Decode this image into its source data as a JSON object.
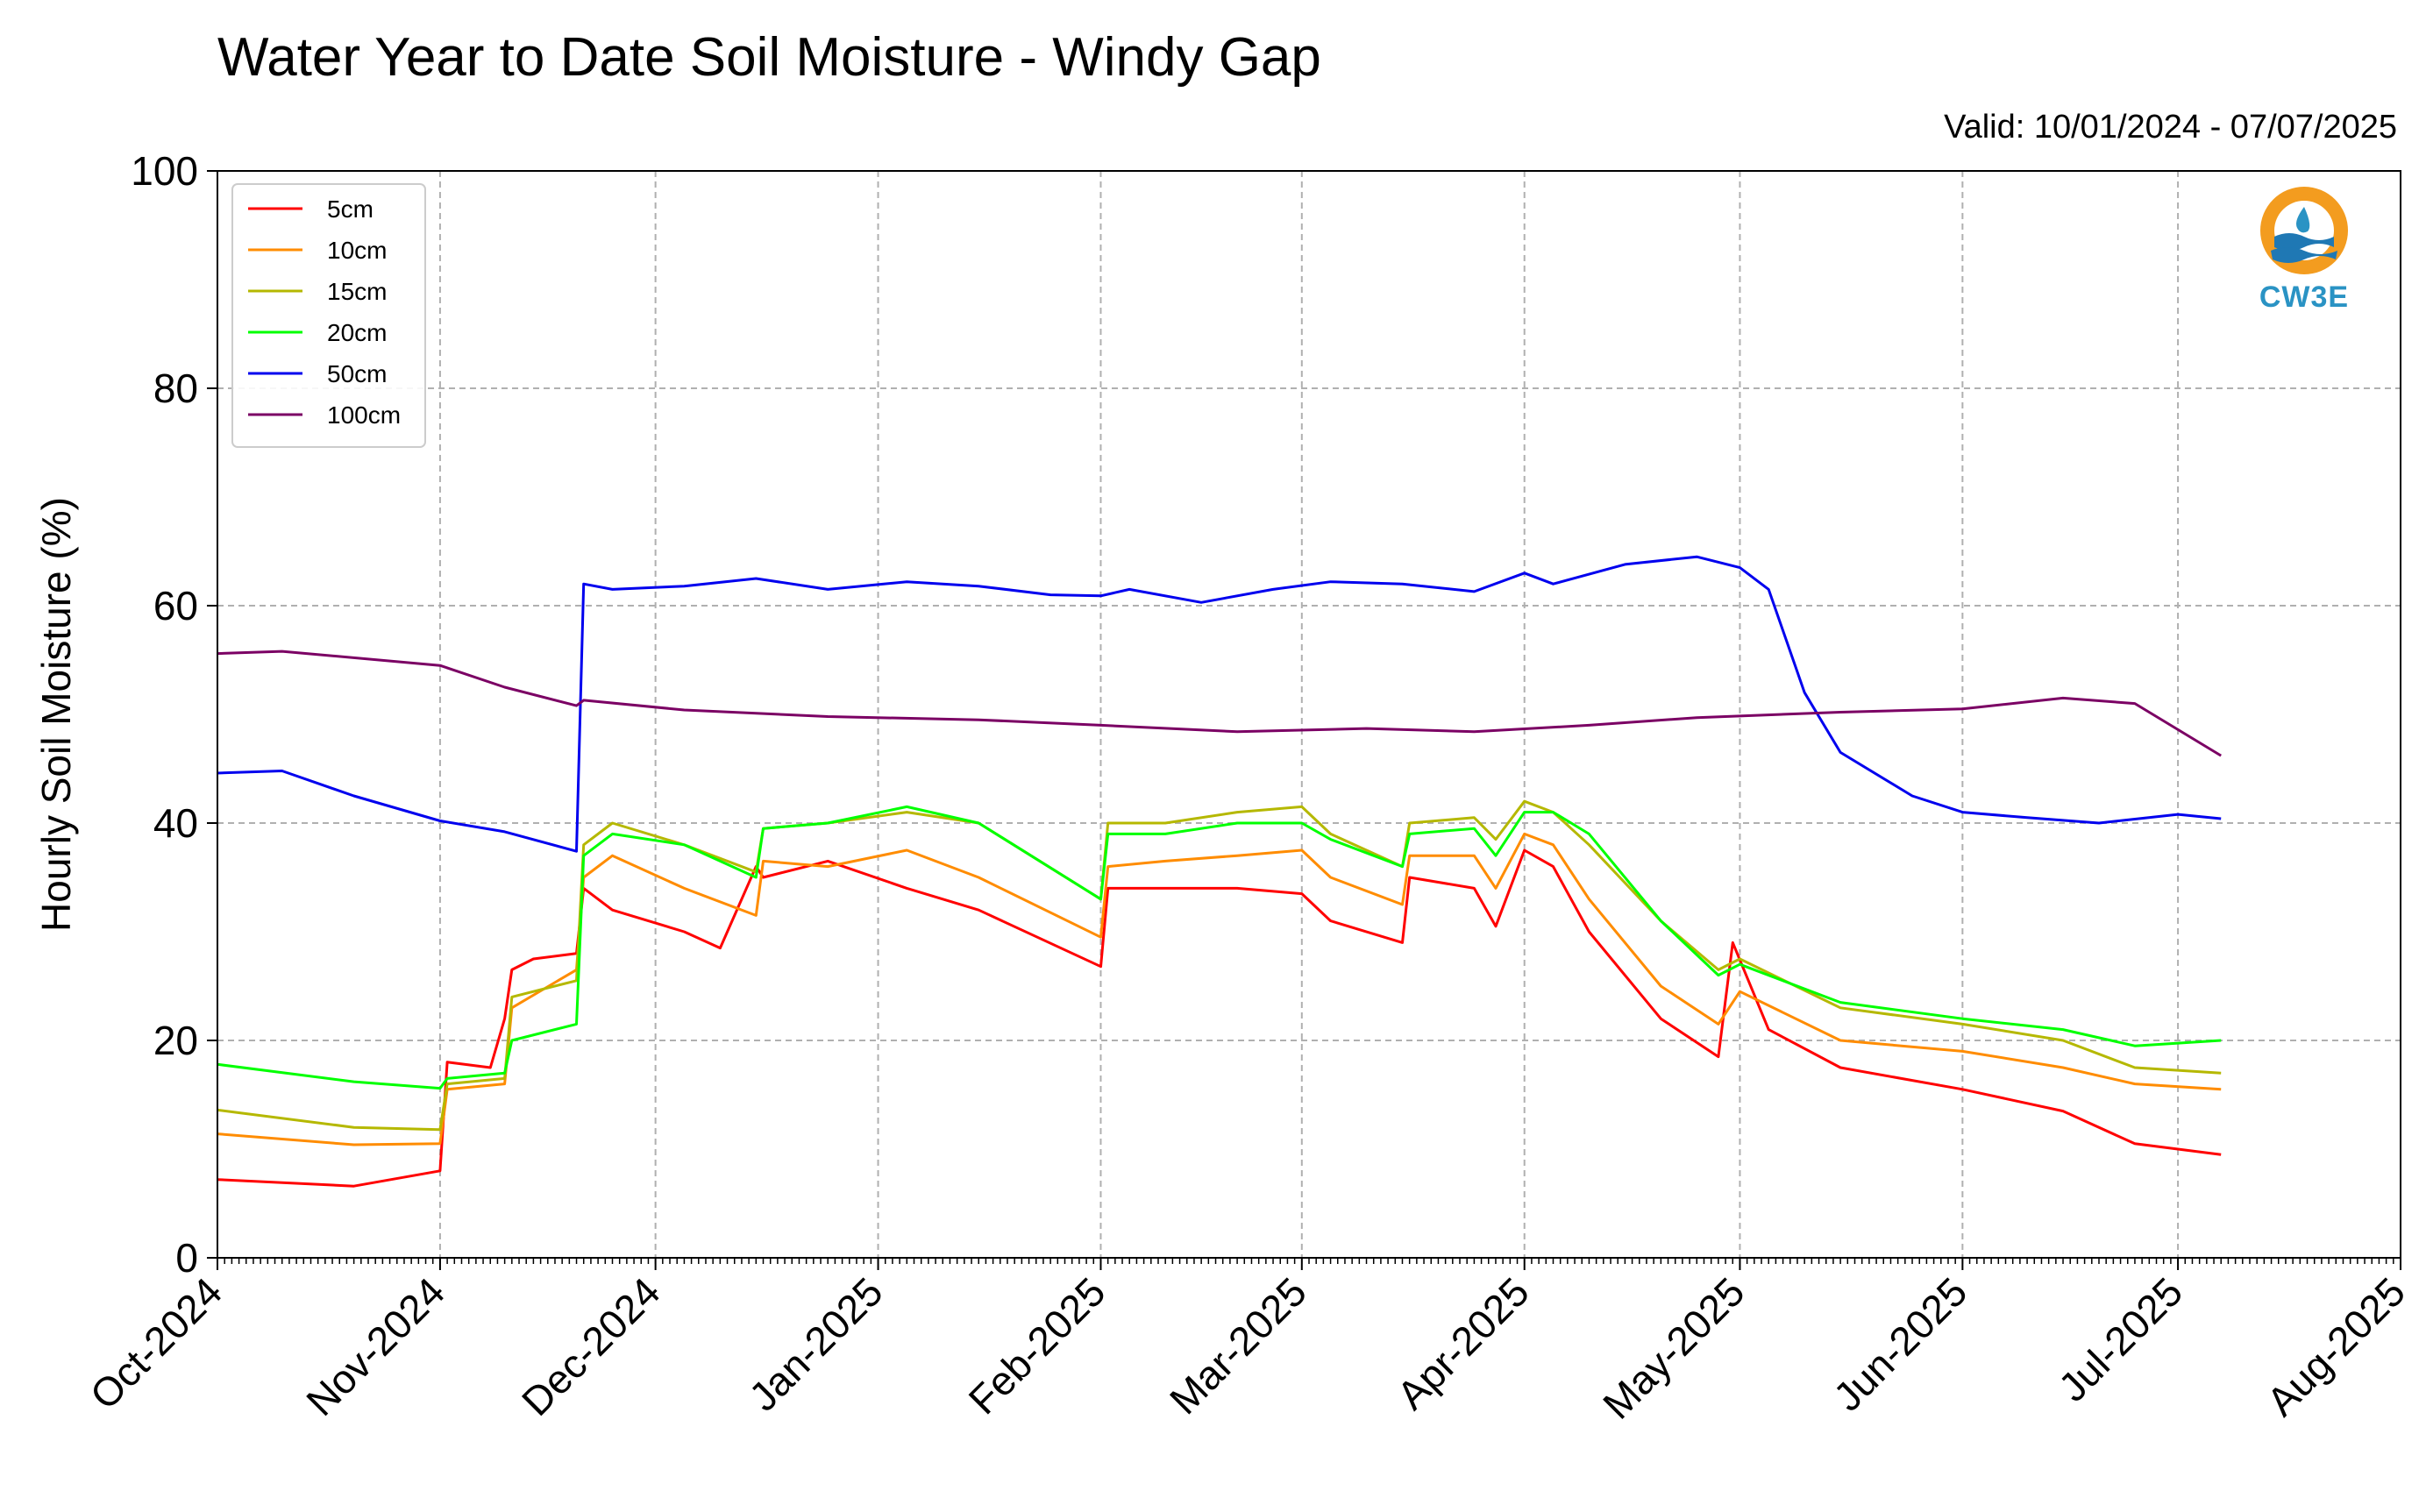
{
  "title": "Water Year to Date Soil Moisture - Windy Gap",
  "valid_text": "Valid: 10/01/2024 - 07/07/2025",
  "logo": {
    "text": "CW3E",
    "icon": "cw3e-logo-icon",
    "colors": {
      "ring": "#f39c1f",
      "water": "#1f78b4",
      "text": "#2a93c4"
    }
  },
  "chart_data": {
    "type": "line",
    "title": "Water Year to Date Soil Moisture - Windy Gap",
    "ylabel": "Hourly Soil Moisture (%)",
    "xlabel": "",
    "ylim": [
      0,
      100
    ],
    "yticks": [
      0,
      20,
      40,
      60,
      80,
      100
    ],
    "xlim": [
      "2024-10-01",
      "2025-08-01"
    ],
    "xticks": [
      {
        "date": "2024-10-01",
        "label": "Oct-2024"
      },
      {
        "date": "2024-11-01",
        "label": "Nov-2024"
      },
      {
        "date": "2024-12-01",
        "label": "Dec-2024"
      },
      {
        "date": "2025-01-01",
        "label": "Jan-2025"
      },
      {
        "date": "2025-02-01",
        "label": "Feb-2025"
      },
      {
        "date": "2025-03-01",
        "label": "Mar-2025"
      },
      {
        "date": "2025-04-01",
        "label": "Apr-2025"
      },
      {
        "date": "2025-05-01",
        "label": "May-2025"
      },
      {
        "date": "2025-06-01",
        "label": "Jun-2025"
      },
      {
        "date": "2025-07-01",
        "label": "Jul-2025"
      },
      {
        "date": "2025-08-01",
        "label": "Aug-2025"
      }
    ],
    "grid": true,
    "legend_position": "top-left",
    "series": [
      {
        "name": "5cm",
        "color": "#ff0000",
        "x": [
          "2024-10-01",
          "2024-10-20",
          "2024-11-01",
          "2024-11-02",
          "2024-11-08",
          "2024-11-10",
          "2024-11-11",
          "2024-11-14",
          "2024-11-20",
          "2024-11-21",
          "2024-11-25",
          "2024-12-05",
          "2024-12-10",
          "2024-12-15",
          "2024-12-16",
          "2024-12-25",
          "2025-01-05",
          "2025-01-15",
          "2025-02-01",
          "2025-02-02",
          "2025-02-10",
          "2025-02-20",
          "2025-03-01",
          "2025-03-05",
          "2025-03-15",
          "2025-03-16",
          "2025-03-25",
          "2025-03-28",
          "2025-04-01",
          "2025-04-05",
          "2025-04-10",
          "2025-04-20",
          "2025-04-28",
          "2025-04-30",
          "2025-05-05",
          "2025-05-15",
          "2025-06-01",
          "2025-06-15",
          "2025-06-25",
          "2025-07-07"
        ],
        "y": [
          7.2,
          6.6,
          8.0,
          18.0,
          17.5,
          22.0,
          26.5,
          27.5,
          28.0,
          34.0,
          32.0,
          30.0,
          28.5,
          36.0,
          35.0,
          36.5,
          34.0,
          32.0,
          26.8,
          34.0,
          34.0,
          34.0,
          33.5,
          31.0,
          29.0,
          35.0,
          34.0,
          30.5,
          37.5,
          36.0,
          30.0,
          22.0,
          18.5,
          29.0,
          21.0,
          17.5,
          15.5,
          13.5,
          10.5,
          9.5
        ]
      },
      {
        "name": "10cm",
        "color": "#ff8c00",
        "x": [
          "2024-10-01",
          "2024-10-20",
          "2024-11-01",
          "2024-11-02",
          "2024-11-10",
          "2024-11-11",
          "2024-11-20",
          "2024-11-21",
          "2024-11-25",
          "2024-12-05",
          "2024-12-15",
          "2024-12-16",
          "2024-12-25",
          "2025-01-05",
          "2025-01-15",
          "2025-02-01",
          "2025-02-02",
          "2025-02-10",
          "2025-02-20",
          "2025-03-01",
          "2025-03-05",
          "2025-03-15",
          "2025-03-16",
          "2025-03-25",
          "2025-03-28",
          "2025-04-01",
          "2025-04-05",
          "2025-04-10",
          "2025-04-20",
          "2025-04-28",
          "2025-05-01",
          "2025-05-15",
          "2025-06-01",
          "2025-06-15",
          "2025-06-25",
          "2025-07-07"
        ],
        "y": [
          11.4,
          10.4,
          10.5,
          15.5,
          16.0,
          23.0,
          26.5,
          35.0,
          37.0,
          34.0,
          31.5,
          36.5,
          36.0,
          37.5,
          35.0,
          29.5,
          36.0,
          36.5,
          37.0,
          37.5,
          35.0,
          32.5,
          37.0,
          37.0,
          34.0,
          39.0,
          38.0,
          33.0,
          25.0,
          21.5,
          24.5,
          20.0,
          19.0,
          17.5,
          16.0,
          15.5
        ]
      },
      {
        "name": "15cm",
        "color": "#b5b800",
        "x": [
          "2024-10-01",
          "2024-10-20",
          "2024-11-01",
          "2024-11-02",
          "2024-11-10",
          "2024-11-11",
          "2024-11-20",
          "2024-11-21",
          "2024-11-25",
          "2024-12-05",
          "2024-12-15",
          "2024-12-16",
          "2024-12-25",
          "2025-01-05",
          "2025-01-15",
          "2025-02-01",
          "2025-02-02",
          "2025-02-10",
          "2025-02-20",
          "2025-03-01",
          "2025-03-05",
          "2025-03-15",
          "2025-03-16",
          "2025-03-25",
          "2025-03-28",
          "2025-04-01",
          "2025-04-05",
          "2025-04-10",
          "2025-04-20",
          "2025-04-28",
          "2025-05-01",
          "2025-05-15",
          "2025-06-01",
          "2025-06-15",
          "2025-06-25",
          "2025-07-07"
        ],
        "y": [
          13.6,
          12.0,
          11.8,
          16.0,
          16.5,
          24.0,
          25.5,
          38.0,
          40.0,
          38.0,
          35.5,
          39.5,
          40.0,
          41.0,
          40.0,
          33.0,
          40.0,
          40.0,
          41.0,
          41.5,
          39.0,
          36.0,
          40.0,
          40.5,
          38.5,
          42.0,
          41.0,
          38.0,
          31.0,
          26.5,
          27.5,
          23.0,
          21.5,
          20.0,
          17.5,
          17.0
        ]
      },
      {
        "name": "20cm",
        "color": "#00ff00",
        "x": [
          "2024-10-01",
          "2024-10-20",
          "2024-11-01",
          "2024-11-02",
          "2024-11-10",
          "2024-11-11",
          "2024-11-20",
          "2024-11-21",
          "2024-11-25",
          "2024-12-05",
          "2024-12-15",
          "2024-12-16",
          "2024-12-25",
          "2025-01-05",
          "2025-01-15",
          "2025-02-01",
          "2025-02-02",
          "2025-02-10",
          "2025-02-20",
          "2025-03-01",
          "2025-03-05",
          "2025-03-15",
          "2025-03-16",
          "2025-03-25",
          "2025-03-28",
          "2025-04-01",
          "2025-04-05",
          "2025-04-10",
          "2025-04-20",
          "2025-04-28",
          "2025-05-01",
          "2025-05-15",
          "2025-06-01",
          "2025-06-15",
          "2025-06-25",
          "2025-07-07"
        ],
        "y": [
          17.8,
          16.2,
          15.6,
          16.5,
          17.0,
          20.0,
          21.5,
          37.0,
          39.0,
          38.0,
          35.0,
          39.5,
          40.0,
          41.5,
          40.0,
          33.0,
          39.0,
          39.0,
          40.0,
          40.0,
          38.5,
          36.0,
          39.0,
          39.5,
          37.0,
          41.0,
          41.0,
          39.0,
          31.0,
          26.0,
          27.0,
          23.5,
          22.0,
          21.0,
          19.5,
          20.0
        ]
      },
      {
        "name": "50cm",
        "color": "#0000ee",
        "x": [
          "2024-10-01",
          "2024-10-10",
          "2024-10-20",
          "2024-11-01",
          "2024-11-10",
          "2024-11-20",
          "2024-11-21",
          "2024-11-25",
          "2024-12-05",
          "2024-12-15",
          "2024-12-25",
          "2025-01-05",
          "2025-01-15",
          "2025-01-25",
          "2025-02-01",
          "2025-02-05",
          "2025-02-15",
          "2025-02-25",
          "2025-03-05",
          "2025-03-15",
          "2025-03-25",
          "2025-04-01",
          "2025-04-05",
          "2025-04-15",
          "2025-04-25",
          "2025-05-01",
          "2025-05-05",
          "2025-05-10",
          "2025-05-15",
          "2025-05-25",
          "2025-06-01",
          "2025-06-10",
          "2025-06-20",
          "2025-07-01",
          "2025-07-07"
        ],
        "y": [
          44.6,
          44.8,
          42.5,
          40.2,
          39.2,
          37.4,
          62.0,
          61.5,
          61.8,
          62.5,
          61.5,
          62.2,
          61.8,
          61.0,
          60.9,
          61.5,
          60.3,
          61.5,
          62.2,
          62.0,
          61.3,
          63.0,
          62.0,
          63.8,
          64.5,
          63.5,
          61.5,
          52.0,
          46.5,
          42.5,
          41.0,
          40.5,
          40.0,
          40.8,
          40.4
        ]
      },
      {
        "name": "100cm",
        "color": "#7b0064",
        "x": [
          "2024-10-01",
          "2024-10-10",
          "2024-11-01",
          "2024-11-10",
          "2024-11-20",
          "2024-11-21",
          "2024-12-05",
          "2024-12-25",
          "2025-01-15",
          "2025-02-01",
          "2025-02-20",
          "2025-03-10",
          "2025-03-25",
          "2025-04-10",
          "2025-04-25",
          "2025-05-15",
          "2025-06-01",
          "2025-06-15",
          "2025-06-25",
          "2025-07-07"
        ],
        "y": [
          55.6,
          55.8,
          54.5,
          52.5,
          50.8,
          51.3,
          50.4,
          49.8,
          49.5,
          49.0,
          48.4,
          48.7,
          48.4,
          49.0,
          49.7,
          50.2,
          50.5,
          51.5,
          51.0,
          46.2
        ]
      }
    ]
  }
}
